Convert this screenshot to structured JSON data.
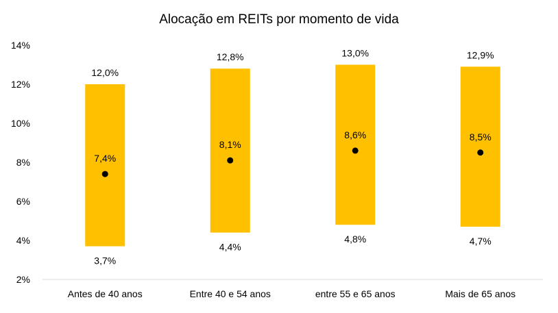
{
  "chart_data": {
    "type": "range-bar",
    "title": "Alocação em REITs por momento de vida",
    "categories": [
      "Antes de 40 anos",
      "Entre 40 e 54 anos",
      "entre 55 e 65 anos",
      "Mais de 65 anos"
    ],
    "series": [
      {
        "values": [
          12.0,
          12.8,
          13.0,
          12.9
        ],
        "labels": [
          "12,0%",
          "12,8%",
          "13,0%",
          "12,9%"
        ]
      },
      {
        "values": [
          3.7,
          4.4,
          4.8,
          4.7
        ],
        "labels": [
          "3,7%",
          "4,4%",
          "4,8%",
          "4,7%"
        ]
      },
      {
        "values": [
          7.4,
          8.1,
          8.6,
          8.5
        ],
        "labels": [
          "7,4%",
          "8,1%",
          "8,6%",
          "8,5%"
        ]
      }
    ],
    "ylim": [
      2,
      14
    ],
    "yticks": [
      2,
      4,
      6,
      8,
      10,
      12,
      14
    ],
    "ytick_labels": [
      "2%",
      "4%",
      "6%",
      "8%",
      "10%",
      "12%",
      "14%"
    ],
    "grid": false,
    "colors": {
      "range_bar": "#FFC000",
      "median_marker": "#000000",
      "axis": "#D9D9D9"
    }
  }
}
